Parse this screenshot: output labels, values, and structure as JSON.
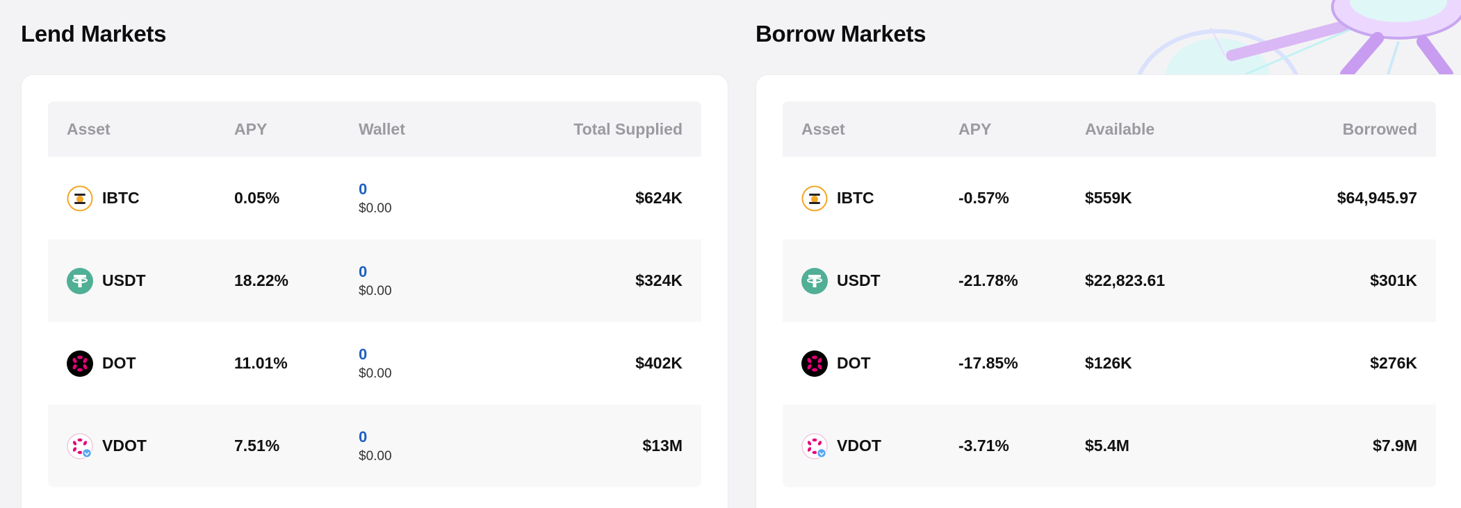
{
  "lend": {
    "title": "Lend Markets",
    "headers": {
      "asset": "Asset",
      "apy": "APY",
      "wallet": "Wallet",
      "total": "Total Supplied"
    },
    "rows": [
      {
        "asset": "IBTC",
        "icon": "ibtc-icon",
        "apy": "0.05%",
        "wallet_amount": "0",
        "wallet_usd": "$0.00",
        "total": "$624K"
      },
      {
        "asset": "USDT",
        "icon": "usdt-icon",
        "apy": "18.22%",
        "wallet_amount": "0",
        "wallet_usd": "$0.00",
        "total": "$324K"
      },
      {
        "asset": "DOT",
        "icon": "dot-icon",
        "apy": "11.01%",
        "wallet_amount": "0",
        "wallet_usd": "$0.00",
        "total": "$402K"
      },
      {
        "asset": "VDOT",
        "icon": "vdot-icon",
        "apy": "7.51%",
        "wallet_amount": "0",
        "wallet_usd": "$0.00",
        "total": "$13M"
      }
    ]
  },
  "borrow": {
    "title": "Borrow Markets",
    "headers": {
      "asset": "Asset",
      "apy": "APY",
      "available": "Available",
      "borrowed": "Borrowed"
    },
    "rows": [
      {
        "asset": "IBTC",
        "icon": "ibtc-icon",
        "apy": "-0.57%",
        "available": "$559K",
        "borrowed": "$64,945.97"
      },
      {
        "asset": "USDT",
        "icon": "usdt-icon",
        "apy": "-21.78%",
        "available": "$22,823.61",
        "borrowed": "$301K"
      },
      {
        "asset": "DOT",
        "icon": "dot-icon",
        "apy": "-17.85%",
        "available": "$126K",
        "borrowed": "$276K"
      },
      {
        "asset": "VDOT",
        "icon": "vdot-icon",
        "apy": "-3.71%",
        "available": "$5.4M",
        "borrowed": "$7.9M"
      }
    ]
  },
  "colors": {
    "background": "#f3f3f5",
    "wallet_link": "#1e5fc0",
    "header_text": "#9a9aa0",
    "ibtc": "#f5a623",
    "usdt": "#50af95",
    "dot": "#e6007a"
  }
}
